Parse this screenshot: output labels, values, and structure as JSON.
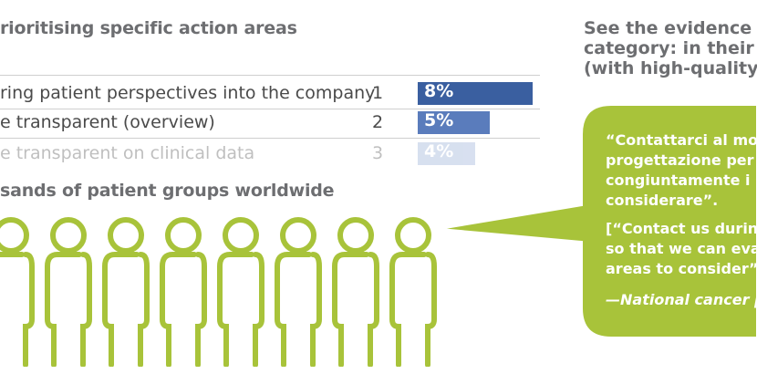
{
  "left": {
    "heading_top": "rioritising specific action areas",
    "rows": [
      {
        "text": "ring patient perspectives into the company",
        "rank": "1",
        "value": "8%",
        "bar_color": "#3a5fa0",
        "bar_width_pct": 8
      },
      {
        "text": "e transparent (overview)",
        "rank": "2",
        "value": "5%",
        "bar_color": "#5a7cbc",
        "bar_width_pct": 5
      },
      {
        "text": "e transparent on clinical data",
        "rank": "3",
        "value": "4%",
        "bar_color": "#8fa7d4",
        "bar_width_pct": 4
      }
    ],
    "heading_bottom": "sands of patient groups worldwide",
    "people_icon": "person-outline-icon",
    "people_color": "#a8c33a"
  },
  "right": {
    "heading_lines": [
      "See the evidence b",
      "category:  in their c",
      "(with high-quality"
    ],
    "bubble_color": "#a8c33a",
    "bubble_lines": [
      "“Contattarci al mom",
      "progettazione per v",
      "congiuntamente i s",
      "considerare”."
    ],
    "translation_lines": [
      "[“Contact us during",
      "so that we can eval",
      "areas to consider”]."
    ],
    "attribution": "—National cancer p"
  }
}
